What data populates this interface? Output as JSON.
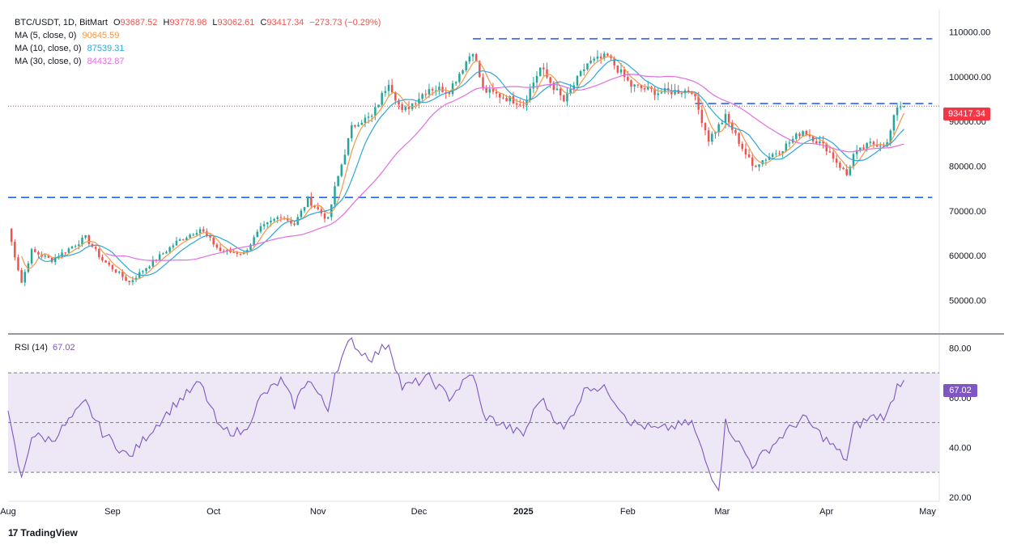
{
  "header": {
    "symbol": "BTC/USDT, 1D, BitMart",
    "open_label": "O",
    "open": "93687.52",
    "high_label": "H",
    "high": "93778.98",
    "low_label": "L",
    "low": "93062.61",
    "close_label": "C",
    "close": "93417.34",
    "change": "−273.73 (−0.29%)"
  },
  "ma_lines": [
    {
      "label": "MA (5, close, 0)",
      "value": "90645.59",
      "color": "#f2994a"
    },
    {
      "label": "MA (10, close, 0)",
      "value": "87539.31",
      "color": "#2ea6d8"
    },
    {
      "label": "MA (30, close, 0)",
      "value": "84432.87",
      "color": "#e26ee0"
    }
  ],
  "rsi": {
    "label": "RSI (14)",
    "value": "67.02",
    "color": "#7e57c2"
  },
  "last_price": {
    "value": "93417.34",
    "color": "#f23645"
  },
  "brand": {
    "logo": "17",
    "name": "TradingView"
  },
  "colors": {
    "up": "#26a69a",
    "down": "#ef5350",
    "level_line": "#2962ff",
    "rsi_band": "#ede7f6"
  },
  "chart_data": [
    {
      "type": "candlestick",
      "title": "BTC/USDT, 1D, BitMart",
      "x_ticks": [
        "Aug",
        "Sep",
        "Oct",
        "Nov",
        "Dec",
        "2025",
        "Feb",
        "Mar",
        "Apr",
        "May"
      ],
      "y_ticks": [
        "110000.00",
        "100000.00",
        "90000.00",
        "80000.00",
        "70000.00",
        "60000.00",
        "50000.00"
      ],
      "ylim": [
        43000,
        115000
      ],
      "dashed_levels": [
        {
          "value": 108500,
          "from": "2024-12-17",
          "to": "2025-04-30"
        },
        {
          "value": 94000,
          "from": "2025-02-21",
          "to": "2025-04-30"
        },
        {
          "value": 73000,
          "from": "2024-08-01",
          "to": "2025-04-30"
        }
      ],
      "anchors": [
        {
          "date": "2024-08-01",
          "value": 66000
        },
        {
          "date": "2024-08-05",
          "value": 54000
        },
        {
          "date": "2024-08-08",
          "value": 61000
        },
        {
          "date": "2024-08-14",
          "value": 59000
        },
        {
          "date": "2024-08-24",
          "value": 64000
        },
        {
          "date": "2024-08-29",
          "value": 59000
        },
        {
          "date": "2024-09-06",
          "value": 54000
        },
        {
          "date": "2024-09-12",
          "value": 58000
        },
        {
          "date": "2024-09-20",
          "value": 63000
        },
        {
          "date": "2024-09-27",
          "value": 66000
        },
        {
          "date": "2024-10-03",
          "value": 61000
        },
        {
          "date": "2024-10-10",
          "value": 60500
        },
        {
          "date": "2024-10-15",
          "value": 66000
        },
        {
          "date": "2024-10-21",
          "value": 69000
        },
        {
          "date": "2024-10-25",
          "value": 67000
        },
        {
          "date": "2024-10-29",
          "value": 72500
        },
        {
          "date": "2024-11-04",
          "value": 68000
        },
        {
          "date": "2024-11-06",
          "value": 75000
        },
        {
          "date": "2024-11-11",
          "value": 88500
        },
        {
          "date": "2024-11-13",
          "value": 90000
        },
        {
          "date": "2024-11-17",
          "value": 91000
        },
        {
          "date": "2024-11-22",
          "value": 99000
        },
        {
          "date": "2024-11-26",
          "value": 92000
        },
        {
          "date": "2024-12-04",
          "value": 97500
        },
        {
          "date": "2024-12-10",
          "value": 97000
        },
        {
          "date": "2024-12-17",
          "value": 106000
        },
        {
          "date": "2024-12-20",
          "value": 97000
        },
        {
          "date": "2025-01-01",
          "value": 94000
        },
        {
          "date": "2025-01-06",
          "value": 102000
        },
        {
          "date": "2025-01-13",
          "value": 94500
        },
        {
          "date": "2025-01-20",
          "value": 103000
        },
        {
          "date": "2025-01-26",
          "value": 104500
        },
        {
          "date": "2025-02-02",
          "value": 98000
        },
        {
          "date": "2025-02-10",
          "value": 96500
        },
        {
          "date": "2025-02-20",
          "value": 97000
        },
        {
          "date": "2025-02-25",
          "value": 86000
        },
        {
          "date": "2025-03-02",
          "value": 91000
        },
        {
          "date": "2025-03-10",
          "value": 80000
        },
        {
          "date": "2025-03-19",
          "value": 84000
        },
        {
          "date": "2025-03-25",
          "value": 88000
        },
        {
          "date": "2025-04-01",
          "value": 84000
        },
        {
          "date": "2025-04-07",
          "value": 78000
        },
        {
          "date": "2025-04-09",
          "value": 82500
        },
        {
          "date": "2025-04-14",
          "value": 85000
        },
        {
          "date": "2025-04-19",
          "value": 85000
        },
        {
          "date": "2025-04-22",
          "value": 93500
        },
        {
          "date": "2025-04-24",
          "value": 93417
        }
      ],
      "ma_series": [
        {
          "period": 5,
          "color": "#f2994a"
        },
        {
          "period": 10,
          "color": "#2ea6d8"
        },
        {
          "period": 30,
          "color": "#e26ee0"
        }
      ]
    },
    {
      "type": "line",
      "title": "RSI (14)",
      "y_ticks": [
        "80.00",
        "60.00",
        "40.00",
        "20.00"
      ],
      "ylim": [
        19,
        84
      ],
      "band": [
        30,
        70
      ],
      "midline": 50,
      "anchors": [
        {
          "date": "2024-08-01",
          "value": 53
        },
        {
          "date": "2024-08-05",
          "value": 27
        },
        {
          "date": "2024-08-08",
          "value": 45
        },
        {
          "date": "2024-08-14",
          "value": 43
        },
        {
          "date": "2024-08-24",
          "value": 58
        },
        {
          "date": "2024-08-29",
          "value": 46
        },
        {
          "date": "2024-09-06",
          "value": 36
        },
        {
          "date": "2024-09-12",
          "value": 46
        },
        {
          "date": "2024-09-20",
          "value": 58
        },
        {
          "date": "2024-09-27",
          "value": 66
        },
        {
          "date": "2024-10-03",
          "value": 47
        },
        {
          "date": "2024-10-10",
          "value": 46
        },
        {
          "date": "2024-10-15",
          "value": 60
        },
        {
          "date": "2024-10-21",
          "value": 67
        },
        {
          "date": "2024-10-25",
          "value": 57
        },
        {
          "date": "2024-10-29",
          "value": 68
        },
        {
          "date": "2024-11-04",
          "value": 55
        },
        {
          "date": "2024-11-06",
          "value": 70
        },
        {
          "date": "2024-11-11",
          "value": 84
        },
        {
          "date": "2024-11-13",
          "value": 79
        },
        {
          "date": "2024-11-17",
          "value": 76
        },
        {
          "date": "2024-11-22",
          "value": 82
        },
        {
          "date": "2024-11-26",
          "value": 64
        },
        {
          "date": "2024-12-04",
          "value": 68
        },
        {
          "date": "2024-12-10",
          "value": 60
        },
        {
          "date": "2024-12-17",
          "value": 70
        },
        {
          "date": "2024-12-20",
          "value": 53
        },
        {
          "date": "2025-01-01",
          "value": 45
        },
        {
          "date": "2025-01-06",
          "value": 60
        },
        {
          "date": "2025-01-13",
          "value": 47
        },
        {
          "date": "2025-01-20",
          "value": 65
        },
        {
          "date": "2025-01-26",
          "value": 63
        },
        {
          "date": "2025-02-02",
          "value": 50
        },
        {
          "date": "2025-02-10",
          "value": 47
        },
        {
          "date": "2025-02-20",
          "value": 50
        },
        {
          "date": "2025-02-25",
          "value": 31
        },
        {
          "date": "2025-02-28",
          "value": 24
        },
        {
          "date": "2025-03-02",
          "value": 50
        },
        {
          "date": "2025-03-10",
          "value": 33
        },
        {
          "date": "2025-03-19",
          "value": 45
        },
        {
          "date": "2025-03-25",
          "value": 52
        },
        {
          "date": "2025-04-01",
          "value": 43
        },
        {
          "date": "2025-04-07",
          "value": 35
        },
        {
          "date": "2025-04-09",
          "value": 48
        },
        {
          "date": "2025-04-14",
          "value": 52
        },
        {
          "date": "2025-04-19",
          "value": 53
        },
        {
          "date": "2025-04-22",
          "value": 65
        },
        {
          "date": "2025-04-24",
          "value": 67
        }
      ]
    }
  ]
}
